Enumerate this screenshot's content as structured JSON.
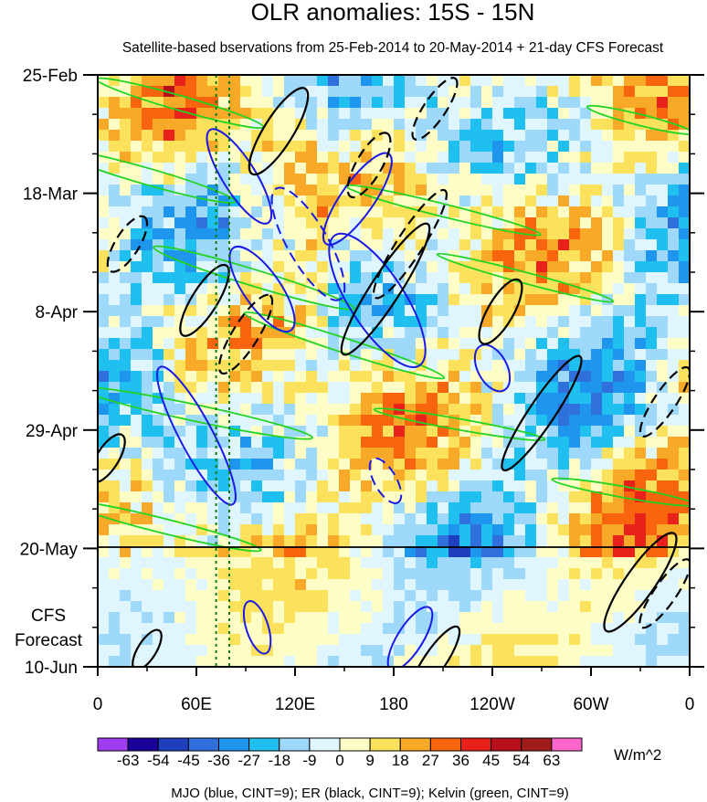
{
  "chart_data": {
    "type": "heatmap",
    "title": "OLR anomalies: 15S - 15N",
    "subtitle": "Satellite-based bservations from 25-Feb-2014 to 20-May-2014 + 21-day CFS Forecast",
    "x_ticks": [
      "0",
      "60E",
      "120E",
      "180",
      "120W",
      "60W",
      "0"
    ],
    "x_values_deg": [
      0,
      60,
      120,
      180,
      240,
      300,
      360
    ],
    "y_ticks": [
      "25-Feb",
      "18-Mar",
      "8-Apr",
      "29-Apr",
      "20-May",
      "10-Jun"
    ],
    "y_day_offsets": [
      0,
      21,
      42,
      63,
      84,
      105
    ],
    "forecast_label_line1": "CFS",
    "forecast_label_line2": "Forecast",
    "forecast_start": "20-May",
    "colorbar": {
      "units": "W/m^2",
      "levels": [
        -63,
        -54,
        -45,
        -36,
        -27,
        -18,
        -9,
        0,
        9,
        18,
        27,
        36,
        45,
        54,
        63
      ],
      "level_labels": [
        "-63",
        "-54",
        "-45",
        "-36",
        "-27",
        "-18",
        "-9",
        "0",
        "9",
        "18",
        "27",
        "36",
        "45",
        "54",
        "63"
      ],
      "colors": [
        "#9f3df0",
        "#1c009a",
        "#1f3fbe",
        "#2f70dc",
        "#1f96ee",
        "#1fc0f0",
        "#9ed8fb",
        "#e0f6ff",
        "#fefdc6",
        "#fce15c",
        "#f9a928",
        "#f8650e",
        "#e8221a",
        "#b8101a",
        "#a21c1c",
        "#ff66cc"
      ]
    },
    "footnote": "MJO (blue, CINT=9); ER (black, CINT=9); Kelvin (green, CINT=9)",
    "contour_colors": {
      "mjo": "#1a1ae6",
      "er": "#000000",
      "kelvin": "#22d322",
      "marker": "#127a12"
    },
    "marker_longitudes_deg": [
      72,
      80
    ]
  }
}
